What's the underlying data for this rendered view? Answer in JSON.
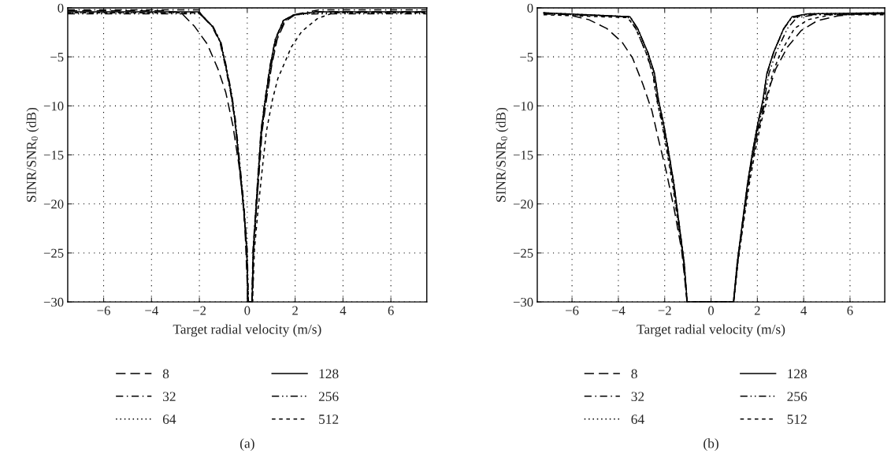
{
  "chart_data": [
    {
      "type": "line",
      "xlabel": "Target radial velocity (m/s)",
      "ylabel": "SINR/SNR$_{0}$ (dB)",
      "annotations": [
        "(a)"
      ],
      "xlim": [
        -7.5,
        7.5
      ],
      "ylim": [
        -30,
        0
      ],
      "xticks": [
        -6,
        -4,
        -2,
        0,
        2,
        4,
        6
      ],
      "yticks": [
        -30,
        -25,
        -20,
        -15,
        -10,
        -5,
        0
      ],
      "grid": true,
      "legend": "bottom",
      "series": [
        {
          "name": "8",
          "color": "#000000",
          "line_style": "dashed",
          "x": [
            -7.5,
            -3.5,
            -2.76,
            -2.2,
            -1.67,
            -1.23,
            -0.9,
            -0.6,
            -0.35,
            -0.12,
            0.03,
            0.2,
            0.26,
            0.38,
            0.5,
            0.62,
            0.8,
            1.02,
            1.25,
            1.58,
            2.0,
            2.9,
            7.5
          ],
          "values": [
            -0.3,
            -0.3,
            -0.5,
            -1.9,
            -3.7,
            -6.2,
            -8.6,
            -12.0,
            -16.0,
            -21.0,
            -30,
            -30,
            -24.7,
            -20.6,
            -16.6,
            -12.6,
            -9.4,
            -5.9,
            -3.2,
            -1.4,
            -0.7,
            -0.4,
            -0.4
          ]
        },
        {
          "name": "32",
          "color": "#000000",
          "line_style": "dashdot",
          "x": [
            -7.5,
            -2.0,
            -1.9,
            -1.47,
            -1.14,
            -0.92,
            -0.7,
            -0.53,
            -0.42,
            -0.31,
            -0.2,
            -0.11,
            -0.03,
            0.02,
            0.19,
            0.24,
            0.35,
            0.46,
            0.57,
            0.74,
            0.95,
            1.17,
            1.5,
            1.95,
            3.0,
            7.5
          ],
          "values": [
            -0.2,
            -0.2,
            -0.8,
            -1.9,
            -3.5,
            -5.9,
            -8.6,
            -11.3,
            -13.9,
            -16.6,
            -19.3,
            -22.0,
            -24.7,
            -30,
            -30,
            -24.7,
            -20.6,
            -16.6,
            -12.6,
            -9.4,
            -5.9,
            -3.2,
            -1.3,
            -0.7,
            -0.2,
            -0.2
          ]
        },
        {
          "name": "64",
          "color": "#000000",
          "line_style": "dotted",
          "x": [
            -7.5,
            -2.0,
            -1.88,
            -1.45,
            -1.12,
            -0.9,
            -0.68,
            -0.52,
            -0.41,
            -0.3,
            -0.19,
            -0.1,
            -0.02,
            0.03,
            0.2,
            0.25,
            0.36,
            0.47,
            0.58,
            0.75,
            0.96,
            1.18,
            1.51,
            1.95,
            2.9,
            7.5
          ],
          "values": [
            -0.5,
            -0.5,
            -0.8,
            -1.9,
            -3.5,
            -5.9,
            -8.6,
            -11.3,
            -13.9,
            -16.6,
            -19.3,
            -22.0,
            -24.7,
            -30,
            -30,
            -24.7,
            -20.6,
            -16.6,
            -12.6,
            -9.4,
            -5.9,
            -3.2,
            -1.3,
            -0.7,
            -0.5,
            -0.5
          ]
        },
        {
          "name": "128",
          "color": "#000000",
          "line_style": "solid",
          "x": [
            -7.5,
            -2.0,
            -1.88,
            -1.45,
            -1.12,
            -0.9,
            -0.68,
            -0.52,
            -0.41,
            -0.3,
            -0.19,
            -0.1,
            -0.02,
            0.03,
            0.2,
            0.25,
            0.36,
            0.47,
            0.58,
            0.75,
            0.96,
            1.18,
            1.51,
            1.95,
            2.9,
            7.5
          ],
          "values": [
            -0.4,
            -0.4,
            -0.8,
            -1.9,
            -3.5,
            -5.9,
            -8.6,
            -11.3,
            -13.9,
            -16.6,
            -19.3,
            -22.0,
            -24.7,
            -30,
            -30,
            -24.7,
            -20.6,
            -16.6,
            -12.6,
            -9.4,
            -5.9,
            -3.2,
            -1.3,
            -0.7,
            -0.4,
            -0.4
          ]
        },
        {
          "name": "256",
          "color": "#000000",
          "line_style": "dashdotdot",
          "x": [
            -7.5,
            -2.0,
            -1.86,
            -1.43,
            -1.1,
            -0.88,
            -0.66,
            -0.5,
            -0.39,
            -0.28,
            -0.17,
            -0.08,
            0.0,
            0.05,
            0.22,
            0.27,
            0.38,
            0.49,
            0.6,
            0.78,
            1.0,
            1.23,
            1.57,
            2.0,
            3.0,
            7.5
          ],
          "values": [
            -0.6,
            -0.6,
            -0.9,
            -1.9,
            -3.5,
            -5.9,
            -8.6,
            -11.3,
            -13.9,
            -16.6,
            -19.3,
            -22.0,
            -24.7,
            -30,
            -30,
            -24.7,
            -20.6,
            -16.6,
            -12.6,
            -9.4,
            -5.9,
            -3.2,
            -1.3,
            -0.7,
            -0.6,
            -0.6
          ]
        },
        {
          "name": "512",
          "color": "#000000",
          "line_style": "shortdash",
          "x": [
            -7.5,
            -2.0,
            -1.88,
            -1.45,
            -1.12,
            -0.9,
            -0.68,
            -0.52,
            -0.41,
            -0.3,
            -0.19,
            -0.1,
            -0.02,
            0.05,
            0.22,
            0.3,
            0.45,
            0.62,
            0.8,
            1.05,
            1.28,
            1.51,
            1.84,
            2.28,
            2.93,
            3.6,
            7.5
          ],
          "values": [
            -0.5,
            -0.5,
            -0.8,
            -1.9,
            -3.5,
            -5.9,
            -8.6,
            -11.3,
            -13.9,
            -16.6,
            -19.3,
            -22.0,
            -24.7,
            -30,
            -30,
            -24.7,
            -20.6,
            -16.6,
            -12.6,
            -9.4,
            -7.2,
            -5.9,
            -4.0,
            -2.4,
            -1.1,
            -0.5,
            -0.5
          ]
        }
      ]
    },
    {
      "type": "line",
      "xlabel": "Target radial velocity (m/s)",
      "ylabel": "SINR/SNR$_{0}$ (dB)",
      "annotations": [
        "(b)"
      ],
      "xlim": [
        -7.5,
        7.5
      ],
      "ylim": [
        -30,
        0
      ],
      "xticks": [
        -6,
        -4,
        -2,
        0,
        2,
        4,
        6
      ],
      "yticks": [
        -30,
        -25,
        -20,
        -15,
        -10,
        -5,
        0
      ],
      "grid": true,
      "legend": "bottom",
      "series": [
        {
          "name": "8",
          "color": "#000000",
          "line_style": "dashed",
          "x": [
            -7.23,
            -6.18,
            -5.28,
            -4.5,
            -3.84,
            -3.39,
            -2.94,
            -2.55,
            -2.27,
            -1.94,
            -1.6,
            -1.27,
            -1.03,
            0.97,
            1.2,
            1.45,
            1.7,
            2.0,
            2.4,
            2.8,
            3.3,
            3.9,
            4.6,
            5.5,
            6.5,
            7.5
          ],
          "values": [
            -0.5,
            -0.7,
            -1.2,
            -2.1,
            -3.5,
            -5.1,
            -7.8,
            -10.5,
            -13.4,
            -16.6,
            -20.4,
            -24.7,
            -30,
            -30,
            -25.0,
            -20.4,
            -16.6,
            -12.8,
            -9.0,
            -6.2,
            -4.0,
            -2.3,
            -1.3,
            -0.8,
            -0.6,
            -0.6
          ]
        },
        {
          "name": "32",
          "color": "#000000",
          "line_style": "dashdot",
          "x": [
            -7.23,
            -3.5,
            -3.17,
            -2.72,
            -2.44,
            -2.27,
            -2.05,
            -1.83,
            -1.6,
            -1.38,
            -1.16,
            -1.03,
            0.98,
            1.14,
            1.36,
            1.58,
            1.8,
            2.03,
            2.25,
            2.42,
            2.7,
            3.15,
            3.5,
            4.2,
            7.5
          ],
          "values": [
            -0.6,
            -0.9,
            -2.1,
            -4.6,
            -6.7,
            -9.4,
            -11.8,
            -14.7,
            -18.0,
            -22.0,
            -26.0,
            -30,
            -30,
            -26.0,
            -22.0,
            -18.0,
            -14.7,
            -11.8,
            -9.4,
            -6.7,
            -4.6,
            -2.1,
            -1.0,
            -0.7,
            -0.6
          ]
        },
        {
          "name": "64",
          "color": "#000000",
          "line_style": "dotted",
          "x": [
            -7.23,
            -3.5,
            -3.17,
            -2.72,
            -2.44,
            -2.27,
            -2.05,
            -1.83,
            -1.6,
            -1.38,
            -1.16,
            -1.03,
            0.97,
            1.13,
            1.35,
            1.57,
            1.79,
            2.02,
            2.24,
            2.41,
            2.69,
            3.14,
            3.5,
            4.2,
            7.5
          ],
          "values": [
            -0.5,
            -0.9,
            -2.1,
            -4.6,
            -6.7,
            -9.4,
            -11.8,
            -14.7,
            -18.0,
            -22.0,
            -26.0,
            -30,
            -30,
            -26.0,
            -22.0,
            -18.0,
            -14.7,
            -11.8,
            -9.4,
            -6.7,
            -4.6,
            -2.1,
            -0.9,
            -0.6,
            -0.5
          ]
        },
        {
          "name": "128",
          "color": "#000000",
          "line_style": "solid",
          "x": [
            -7.23,
            -3.5,
            -3.17,
            -2.72,
            -2.44,
            -2.27,
            -2.05,
            -1.83,
            -1.6,
            -1.38,
            -1.16,
            -1.03,
            0.97,
            1.13,
            1.35,
            1.57,
            1.79,
            2.02,
            2.24,
            2.41,
            2.69,
            3.14,
            3.5,
            4.2,
            7.5
          ],
          "values": [
            -0.5,
            -0.9,
            -2.1,
            -4.6,
            -6.7,
            -9.4,
            -11.8,
            -14.7,
            -18.0,
            -22.0,
            -26.0,
            -30,
            -30,
            -26.0,
            -22.0,
            -18.0,
            -14.7,
            -11.8,
            -9.4,
            -6.7,
            -4.6,
            -2.1,
            -0.9,
            -0.6,
            -0.5
          ]
        },
        {
          "name": "256",
          "color": "#000000",
          "line_style": "dashdotdot",
          "x": [
            -7.23,
            -3.6,
            -3.25,
            -2.8,
            -2.5,
            -2.32,
            -2.1,
            -1.87,
            -1.63,
            -1.4,
            -1.17,
            -1.04,
            0.98,
            1.15,
            1.38,
            1.6,
            1.83,
            2.07,
            2.3,
            2.5,
            2.8,
            3.3,
            3.7,
            4.5,
            7.5
          ],
          "values": [
            -0.6,
            -0.9,
            -2.1,
            -4.6,
            -6.7,
            -9.4,
            -11.8,
            -14.7,
            -18.0,
            -22.0,
            -26.0,
            -30,
            -30,
            -26.0,
            -22.0,
            -18.0,
            -14.7,
            -11.8,
            -9.4,
            -6.7,
            -4.6,
            -2.1,
            -1.0,
            -0.7,
            -0.6
          ]
        },
        {
          "name": "512",
          "color": "#000000",
          "line_style": "shortdash",
          "x": [
            -7.23,
            -3.6,
            -3.25,
            -2.8,
            -2.52,
            -2.34,
            -2.12,
            -1.9,
            -1.66,
            -1.42,
            -1.18,
            -1.04,
            0.98,
            1.16,
            1.4,
            1.65,
            1.9,
            2.15,
            2.42,
            2.65,
            3.0,
            3.6,
            4.2,
            5.2,
            7.5
          ],
          "values": [
            -0.7,
            -1.0,
            -2.1,
            -4.6,
            -6.7,
            -9.4,
            -11.8,
            -14.7,
            -18.0,
            -22.0,
            -26.0,
            -30,
            -30,
            -26.0,
            -22.0,
            -18.0,
            -14.7,
            -11.8,
            -9.4,
            -6.7,
            -4.6,
            -2.1,
            -1.2,
            -0.7,
            -0.7
          ]
        }
      ]
    }
  ]
}
